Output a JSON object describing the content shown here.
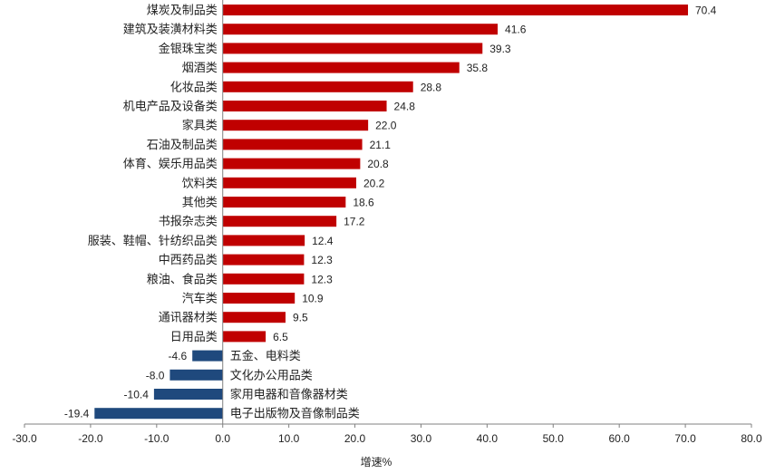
{
  "chart_data": {
    "type": "bar",
    "orientation": "horizontal",
    "xlabel": "增速%",
    "xlim": [
      -30,
      80
    ],
    "xticks": [
      -30,
      -20,
      -10,
      0,
      10,
      20,
      30,
      40,
      50,
      60,
      70,
      80
    ],
    "tick_labels": [
      "-30.0",
      "-20.0",
      "-10.0",
      "0.0",
      "10.0",
      "20.0",
      "30.0",
      "40.0",
      "50.0",
      "60.0",
      "70.0",
      "80.0"
    ],
    "grid": false,
    "legend": "none",
    "colors": {
      "positive": "#c00000",
      "negative": "#1f497d",
      "axis": "#808080"
    },
    "categories": [
      "煤炭及制品类",
      "建筑及装潢材料类",
      "金银珠宝类",
      "烟酒类",
      "化妆品类",
      "机电产品及设备类",
      "家具类",
      "石油及制品类",
      "体育、娱乐用品类",
      "饮料类",
      "其他类",
      "书报杂志类",
      "服装、鞋帽、针纺织品类",
      "中西药品类",
      "粮油、食品类",
      "汽车类",
      "通讯器材类",
      "日用品类",
      "五金、电料类",
      "文化办公用品类",
      "家用电器和音像器材类",
      "电子出版物及音像制品类"
    ],
    "values": [
      70.4,
      41.6,
      39.3,
      35.8,
      28.8,
      24.8,
      22.0,
      21.1,
      20.8,
      20.2,
      18.6,
      17.2,
      12.4,
      12.3,
      12.3,
      10.9,
      9.5,
      6.5,
      -4.6,
      -8.0,
      -10.4,
      -19.4
    ],
    "value_labels": [
      "70.4",
      "41.6",
      "39.3",
      "35.8",
      "28.8",
      "24.8",
      "22.0",
      "21.1",
      "20.8",
      "20.2",
      "18.6",
      "17.2",
      "12.4",
      "12.3",
      "12.3",
      "10.9",
      "9.5",
      "6.5",
      "-4.6",
      "-8.0",
      "-10.4",
      "-19.4"
    ]
  }
}
